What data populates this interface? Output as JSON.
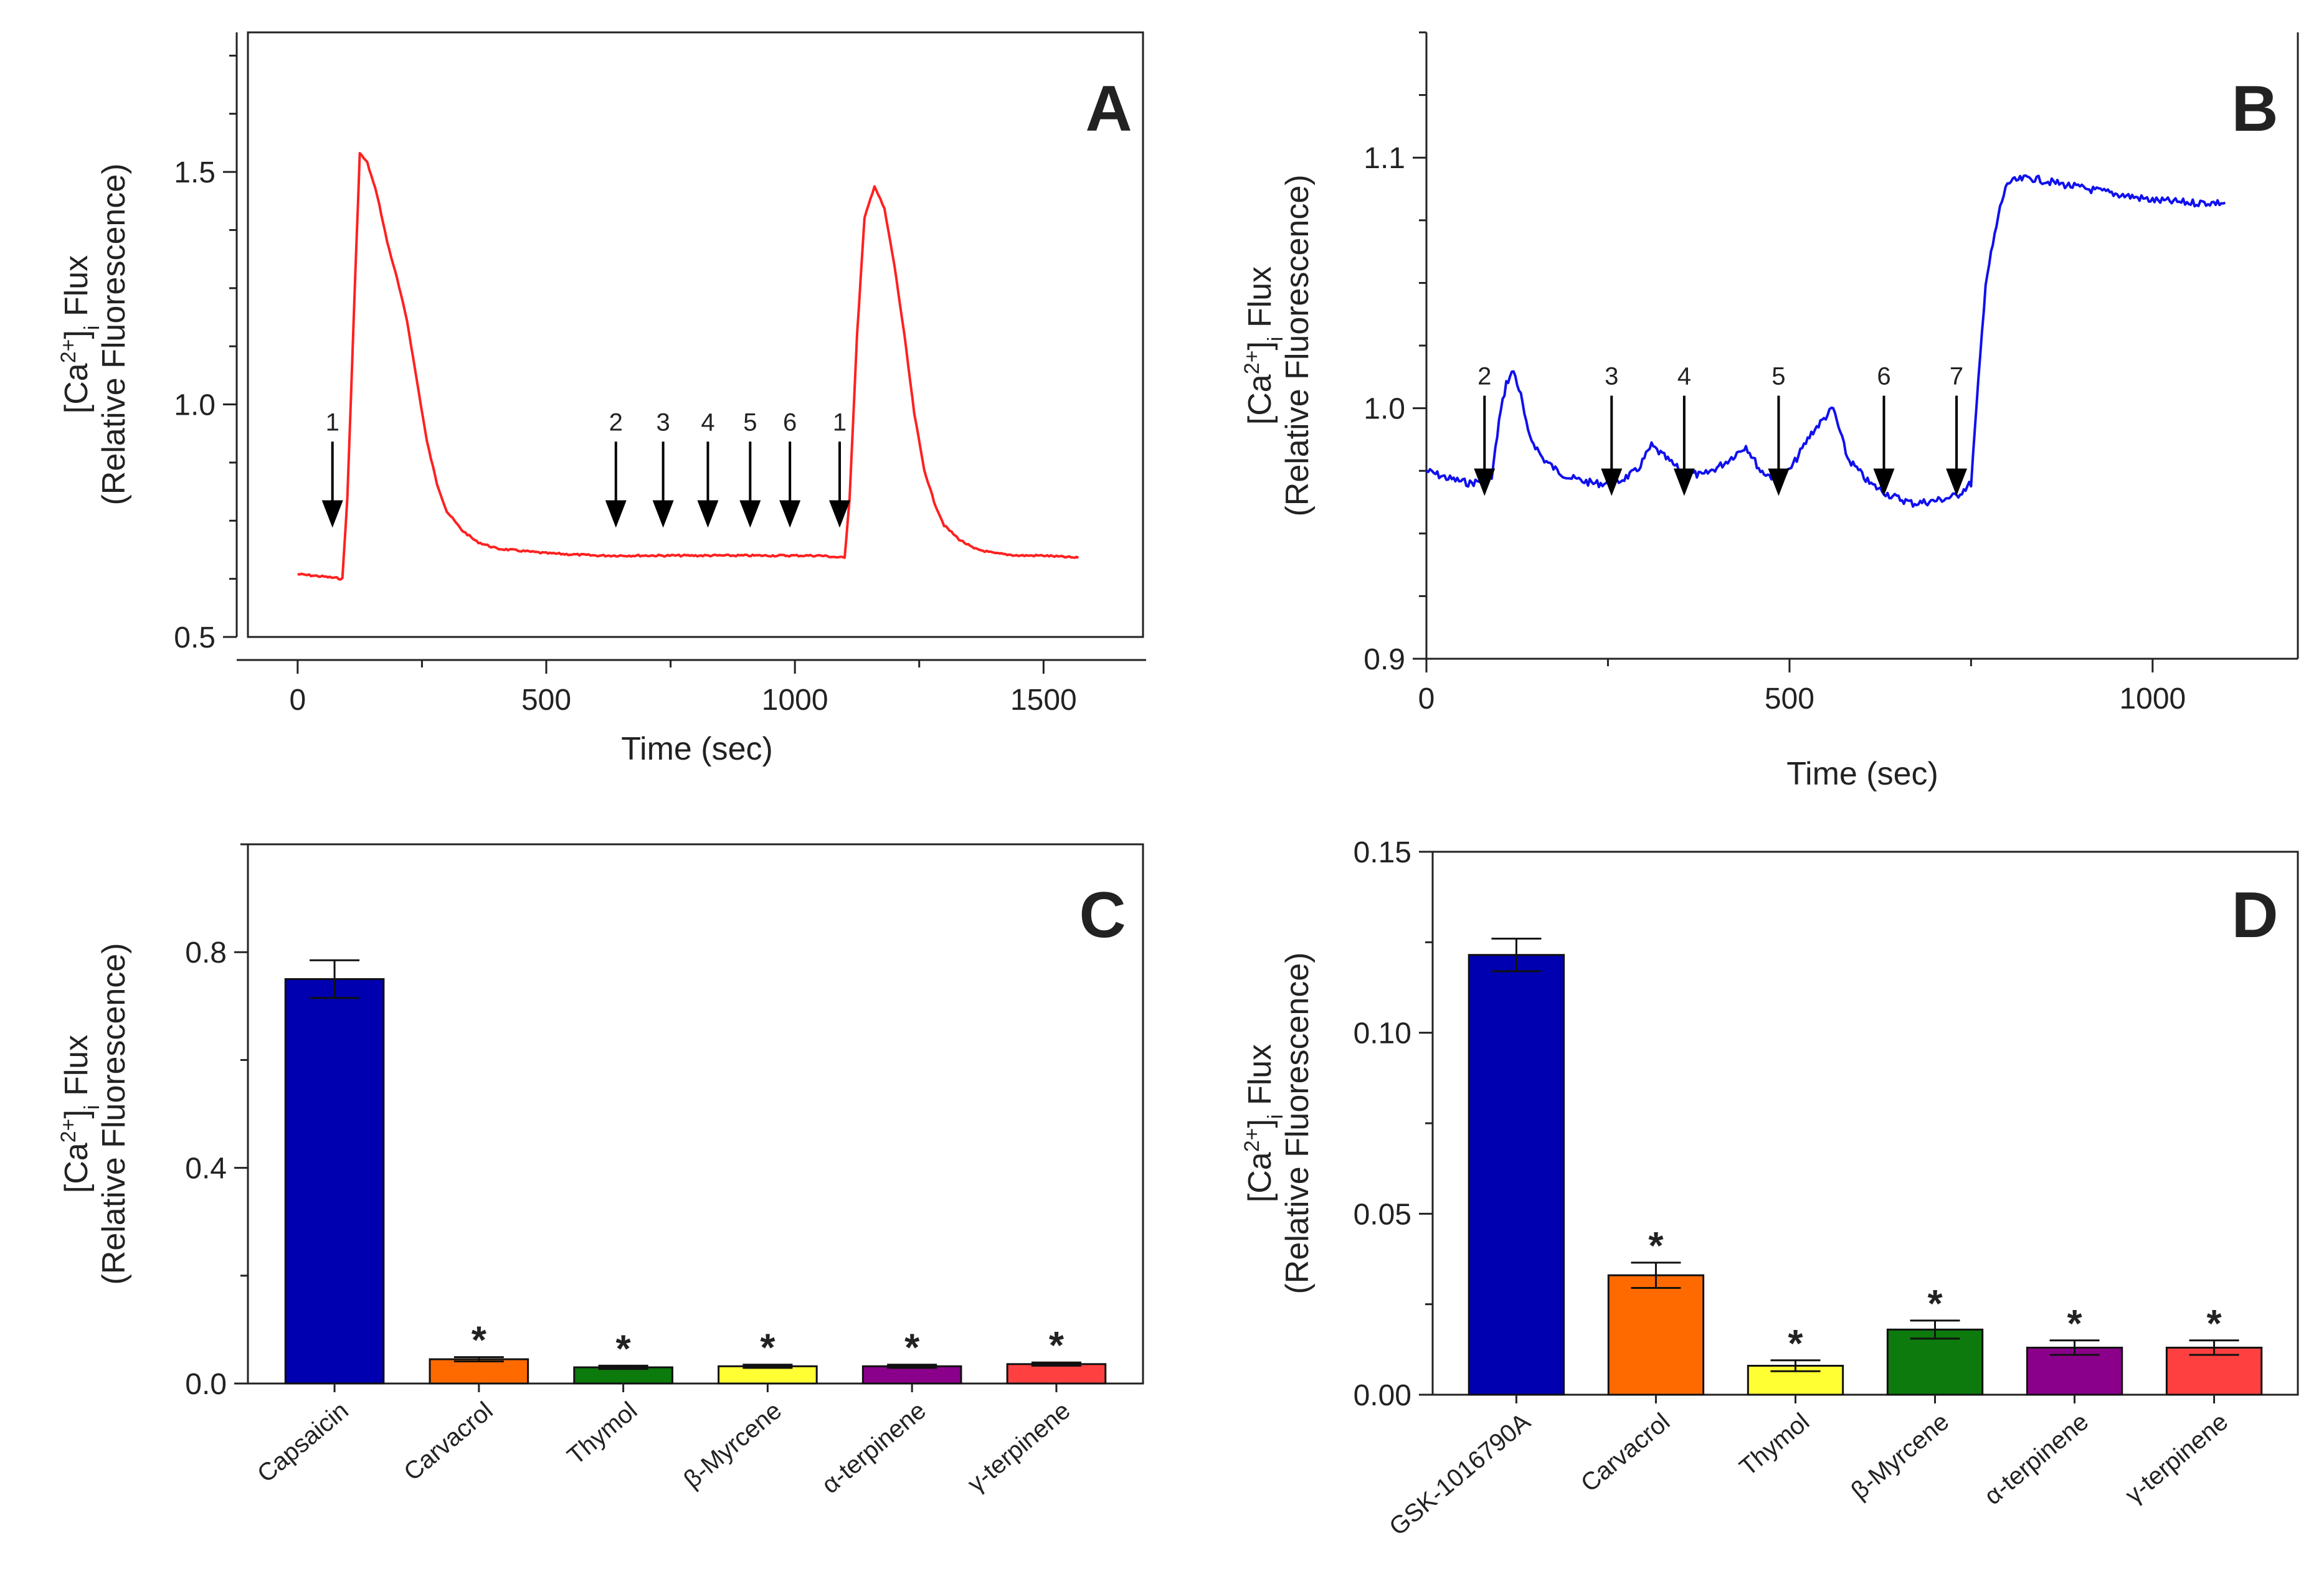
{
  "chart_data": [
    {
      "type": "line",
      "panel": "A",
      "xlabel": "Time  (sec)",
      "ylabel_line1_parts": [
        "[Ca",
        "2+",
        "]",
        "i",
        " Flux"
      ],
      "ylabel_line2": "(Relative Fluorescence)",
      "color": "#ff2020",
      "xlim": [
        -100,
        1700
      ],
      "ylim": [
        0.5,
        1.8
      ],
      "xticks": [
        0,
        500,
        1000,
        1500
      ],
      "xtick_labels": [
        "0",
        "500",
        "1000",
        "1500"
      ],
      "yticks": [
        0.5,
        1.0,
        1.5
      ],
      "ytick_labels": [
        "0.5",
        "1.0",
        "1.5"
      ],
      "series": [
        {
          "name": "trace",
          "x": [
            0,
            50,
            90,
            100,
            115,
            125,
            140,
            160,
            180,
            200,
            220,
            240,
            260,
            280,
            300,
            330,
            360,
            400,
            450,
            500,
            600,
            700,
            800,
            900,
            1000,
            1050,
            1100,
            1110,
            1125,
            1140,
            1160,
            1180,
            1200,
            1220,
            1240,
            1260,
            1280,
            1300,
            1330,
            1360,
            1400,
            1450,
            1500,
            1570
          ],
          "y": [
            0.635,
            0.63,
            0.625,
            0.8,
            1.25,
            1.54,
            1.52,
            1.45,
            1.35,
            1.27,
            1.18,
            1.05,
            0.92,
            0.83,
            0.77,
            0.73,
            0.705,
            0.69,
            0.685,
            0.68,
            0.675,
            0.675,
            0.675,
            0.675,
            0.675,
            0.675,
            0.67,
            0.8,
            1.15,
            1.4,
            1.47,
            1.42,
            1.3,
            1.15,
            0.98,
            0.86,
            0.79,
            0.74,
            0.71,
            0.69,
            0.68,
            0.675,
            0.675,
            0.67
          ]
        }
      ],
      "arrows": [
        {
          "label": "1",
          "x": 70
        },
        {
          "label": "2",
          "x": 640
        },
        {
          "label": "3",
          "x": 735
        },
        {
          "label": "4",
          "x": 825
        },
        {
          "label": "5",
          "x": 910
        },
        {
          "label": "6",
          "x": 990
        },
        {
          "label": "1",
          "x": 1090
        }
      ]
    },
    {
      "type": "line",
      "panel": "B",
      "xlabel": "Time  (sec)",
      "ylabel_line1_parts": [
        "[Ca",
        "2+",
        "]",
        "i",
        " Flux"
      ],
      "ylabel_line2": "(Relative Fluorescence)",
      "color": "#1010ee",
      "xlim": [
        0,
        1200
      ],
      "ylim": [
        0.9,
        1.15
      ],
      "xticks": [
        0,
        500,
        1000
      ],
      "xtick_labels": [
        "0",
        "500",
        "1000"
      ],
      "yticks": [
        0.9,
        1.0,
        1.1
      ],
      "ytick_labels": [
        "0.9",
        "1.0",
        "1.1"
      ],
      "series": [
        {
          "name": "trace",
          "x": [
            0,
            30,
            60,
            90,
            100,
            110,
            120,
            130,
            140,
            160,
            180,
            200,
            230,
            260,
            290,
            310,
            330,
            350,
            380,
            410,
            440,
            460,
            480,
            500,
            530,
            560,
            580,
            610,
            640,
            670,
            700,
            730,
            750,
            760,
            770,
            790,
            800,
            830,
            900,
            1000,
            1050,
            1100
          ],
          "y": [
            0.975,
            0.972,
            0.97,
            0.972,
            0.995,
            1.01,
            1.015,
            1.005,
            0.99,
            0.98,
            0.975,
            0.972,
            0.97,
            0.97,
            0.975,
            0.985,
            0.98,
            0.975,
            0.973,
            0.978,
            0.985,
            0.975,
            0.972,
            0.975,
            0.99,
            1.0,
            0.98,
            0.97,
            0.965,
            0.962,
            0.963,
            0.965,
            0.97,
            1.01,
            1.05,
            1.08,
            1.09,
            1.092,
            1.088,
            1.083,
            1.082,
            1.082
          ]
        }
      ],
      "arrows": [
        {
          "label": "2",
          "x": 80
        },
        {
          "label": "3",
          "x": 255
        },
        {
          "label": "4",
          "x": 355
        },
        {
          "label": "5",
          "x": 485
        },
        {
          "label": "6",
          "x": 630
        },
        {
          "label": "7",
          "x": 730
        }
      ]
    },
    {
      "type": "bar",
      "panel": "C",
      "ylabel_line1_parts": [
        "[Ca",
        "2+",
        "]",
        "i",
        " Flux"
      ],
      "ylabel_line2": "(Relative Fluorescence)",
      "ylim": [
        0,
        1.0
      ],
      "yticks": [
        0.0,
        0.4,
        0.8
      ],
      "ytick_labels": [
        "0.0",
        "0.4",
        "0.8"
      ],
      "categories": [
        "Capsaicin",
        "Carvacrol",
        "Thymol",
        "β-Myrcene",
        "α-terpinene",
        "γ-terpinene"
      ],
      "values": [
        0.75,
        0.045,
        0.03,
        0.032,
        0.032,
        0.036
      ],
      "errors": [
        0.035,
        0.004,
        0.003,
        0.003,
        0.003,
        0.003
      ],
      "significant": [
        false,
        true,
        true,
        true,
        true,
        true
      ],
      "significance_marker": "*",
      "colors": [
        "#0000b0",
        "#ff6a00",
        "#0c7a0c",
        "#ffff33",
        "#8a008a",
        "#ff4040"
      ]
    },
    {
      "type": "bar",
      "panel": "D",
      "ylabel_line1_parts": [
        "[Ca",
        "2+",
        "]",
        "i",
        " Flux"
      ],
      "ylabel_line2": "(Relative Fluorescence)",
      "ylim": [
        0,
        0.15
      ],
      "yticks": [
        0.0,
        0.05,
        0.1,
        0.15
      ],
      "ytick_labels": [
        "0.00",
        "0.05",
        "0.10",
        "0.15"
      ],
      "categories": [
        "GSK-1016790A",
        "Carvacrol",
        "Thymol",
        "β-Myrcene",
        "α-terpinene",
        "γ-terpinene"
      ],
      "values": [
        0.1215,
        0.033,
        0.008,
        0.018,
        0.013,
        0.013
      ],
      "errors": [
        0.0045,
        0.0035,
        0.0015,
        0.0025,
        0.002,
        0.002
      ],
      "significant": [
        false,
        true,
        true,
        true,
        true,
        true
      ],
      "significance_marker": "*",
      "colors": [
        "#0000b0",
        "#ff6a00",
        "#ffff33",
        "#0c7a0c",
        "#8a008a",
        "#ff4040"
      ]
    }
  ]
}
